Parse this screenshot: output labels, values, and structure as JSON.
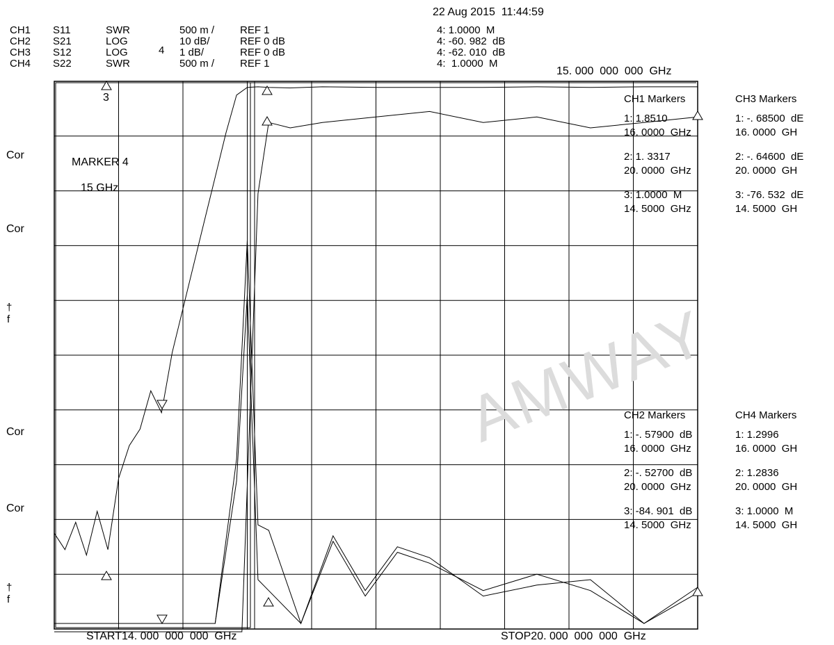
{
  "header": {
    "timestamp": "22 Aug 2015  11:44:59",
    "channels": [
      {
        "ch": "CH1",
        "param": "S11",
        "fmt": "SWR",
        "scale": "500 m /",
        "ref": "REF 1"
      },
      {
        "ch": "CH2",
        "param": "S21",
        "fmt": "LOG",
        "scale": "10 dB/",
        "ref": "REF 0 dB"
      },
      {
        "ch": "CH3",
        "param": "S12",
        "fmt": "LOG",
        "scale": "1 dB/",
        "ref": "REF 0 dB"
      },
      {
        "ch": "CH4",
        "param": "S22",
        "fmt": "SWR",
        "scale": "500 m /",
        "ref": "REF 1"
      }
    ],
    "active_marker_readouts": [
      "4: 1.0000  M",
      "4: -60. 982  dB",
      "4: -62. 010  dB",
      "4:  1.0000  M"
    ],
    "marker_freq": "15. 000  000  000  GHz",
    "ch3_marker_number": "4",
    "ch3_ref_marker": "3"
  },
  "annotation": {
    "line1": "MARKER 4",
    "line2": "15 GHz"
  },
  "left_labels": [
    "Cor",
    "Cor",
    "Cor",
    "Cor"
  ],
  "left_arrows": [
    "†\nf",
    "†\nf"
  ],
  "watermark": "AMWAY",
  "markers": {
    "ch1": {
      "title": "CH1 Markers",
      "items": [
        {
          "v": "1: 1.8510",
          "f": "16. 0000  GHz"
        },
        {
          "v": "2: 1. 3317",
          "f": "20. 0000  GHz"
        },
        {
          "v": "3: 1.0000  M",
          "f": "14. 5000  GHz"
        }
      ]
    },
    "ch3": {
      "title": "CH3 Markers",
      "items": [
        {
          "v": "1: -. 68500  dE",
          "f": "16. 0000  GH"
        },
        {
          "v": "2: -. 64600  dE",
          "f": "20. 0000  GH"
        },
        {
          "v": "3: -76. 532  dE",
          "f": "14. 5000  GH"
        }
      ]
    },
    "ch2": {
      "title": "CH2 Markers",
      "items": [
        {
          "v": "1: -. 57900  dB",
          "f": "16. 0000  GHz"
        },
        {
          "v": "2: -. 52700  dB",
          "f": "20. 0000  GHz"
        },
        {
          "v": "3: -84. 901  dB",
          "f": "14. 5000  GHz"
        }
      ]
    },
    "ch4": {
      "title": "CH4 Markers",
      "items": [
        {
          "v": "1: 1.2996",
          "f": "16. 0000  GH"
        },
        {
          "v": "2: 1.2836",
          "f": "20. 0000  GH"
        },
        {
          "v": "3: 1.0000  M",
          "f": "14. 5000  GH"
        }
      ]
    }
  },
  "footer": {
    "start": "START14. 000  000  000  GHz",
    "stop": "STOP20. 000  000  000  GHz"
  },
  "colors": {
    "trace": "#000000",
    "grid": "#000000",
    "watermark": "#dcdcdc"
  },
  "chart_data": {
    "type": "line",
    "x_range_ghz": [
      14.0,
      20.0
    ],
    "grid": true,
    "divisions": {
      "x": 10,
      "y": 10
    },
    "series": [
      {
        "name": "S21",
        "units": "dB",
        "ref": 0,
        "scale_per_div": 10,
        "x": [
          14.0,
          14.1,
          14.2,
          14.3,
          14.4,
          14.5,
          14.6,
          14.7,
          14.8,
          14.9,
          15.0,
          15.1,
          15.2,
          15.3,
          15.4,
          15.5,
          15.6,
          15.7,
          15.8,
          15.9,
          16.0,
          16.2,
          16.5,
          17.0,
          17.5,
          18.0,
          18.5,
          19.0,
          19.5,
          20.0
        ],
        "values": [
          -82,
          -85,
          -80,
          -86,
          -78,
          -85,
          -72,
          -66,
          -63,
          -56,
          -60,
          -49,
          -41,
          -33,
          -25,
          -17,
          -9,
          -2,
          -0.6,
          -0.5,
          -0.6,
          -0.7,
          -0.5,
          -0.6,
          -0.6,
          -0.6,
          -0.5,
          -0.6,
          -0.5,
          -0.5
        ]
      },
      {
        "name": "S12",
        "units": "dB",
        "ref": 0,
        "scale_per_div": 1,
        "x": [
          14.0,
          15.0,
          15.5,
          15.75,
          15.9,
          16.0,
          16.2,
          16.5,
          17.0,
          17.5,
          18.0,
          18.5,
          19.0,
          19.5,
          20.0
        ],
        "values": [
          -10,
          -10,
          -10,
          -10,
          -2,
          -0.7,
          -0.8,
          -0.7,
          -0.6,
          -0.5,
          -0.7,
          -0.6,
          -0.8,
          -0.7,
          -0.6
        ]
      },
      {
        "name": "S11",
        "units": "SWR",
        "ref": 1,
        "scale_per_div": 0.5,
        "x": [
          14.0,
          15.0,
          15.5,
          15.7,
          15.8,
          15.9,
          16.0,
          16.3,
          16.6,
          16.9,
          17.2,
          17.5,
          18.0,
          18.5,
          19.0,
          19.5,
          20.0
        ],
        "values": [
          1.0,
          1.0,
          1.0,
          2.5,
          4.5,
          1.9,
          1.85,
          1.0,
          1.8,
          1.3,
          1.7,
          1.6,
          1.25,
          1.35,
          1.4,
          1.0,
          1.33
        ]
      },
      {
        "name": "S22",
        "units": "SWR",
        "ref": 1,
        "scale_per_div": 0.5,
        "x": [
          14.0,
          15.0,
          15.5,
          15.7,
          15.8,
          15.9,
          16.0,
          16.3,
          16.6,
          16.9,
          17.2,
          17.5,
          18.0,
          18.5,
          19.0,
          19.5,
          20.0
        ],
        "values": [
          1.0,
          1.0,
          1.0,
          2.3,
          4.0,
          1.4,
          1.3,
          1.0,
          1.75,
          1.25,
          1.65,
          1.55,
          1.3,
          1.45,
          1.3,
          1.0,
          1.28
        ]
      }
    ]
  }
}
